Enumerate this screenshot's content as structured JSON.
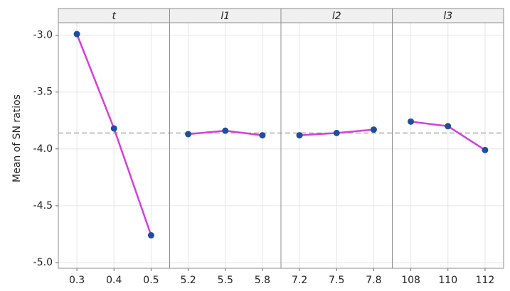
{
  "chart_data": {
    "type": "line",
    "ylabel": "Mean of SN ratios",
    "ylim": [
      -5.05,
      -2.89
    ],
    "yticks": [
      {
        "value": -3,
        "label": "-3.0"
      },
      -3.5,
      {
        "value": -4,
        "label": "-4.0"
      },
      -4.5,
      {
        "value": -5,
        "label": "-5.0"
      }
    ],
    "grid": true,
    "reference_line": -3.86,
    "line_color": "#d63ede",
    "marker_color": "#1f4e9c",
    "panels": [
      {
        "title": "t",
        "categories": [
          "0.3",
          "0.4",
          "0.5"
        ],
        "values": [
          -2.99,
          -3.82,
          -4.76
        ]
      },
      {
        "title": "l1",
        "categories": [
          "5.2",
          "5.5",
          "5.8"
        ],
        "values": [
          -3.87,
          -3.84,
          -3.88
        ]
      },
      {
        "title": "l2",
        "categories": [
          "7.2",
          "7.5",
          "7.8"
        ],
        "values": [
          -3.88,
          -3.86,
          -3.83
        ]
      },
      {
        "title": "l3",
        "categories": [
          "108",
          "110",
          "112"
        ],
        "values": [
          -3.76,
          -3.8,
          -4.01
        ]
      }
    ]
  }
}
